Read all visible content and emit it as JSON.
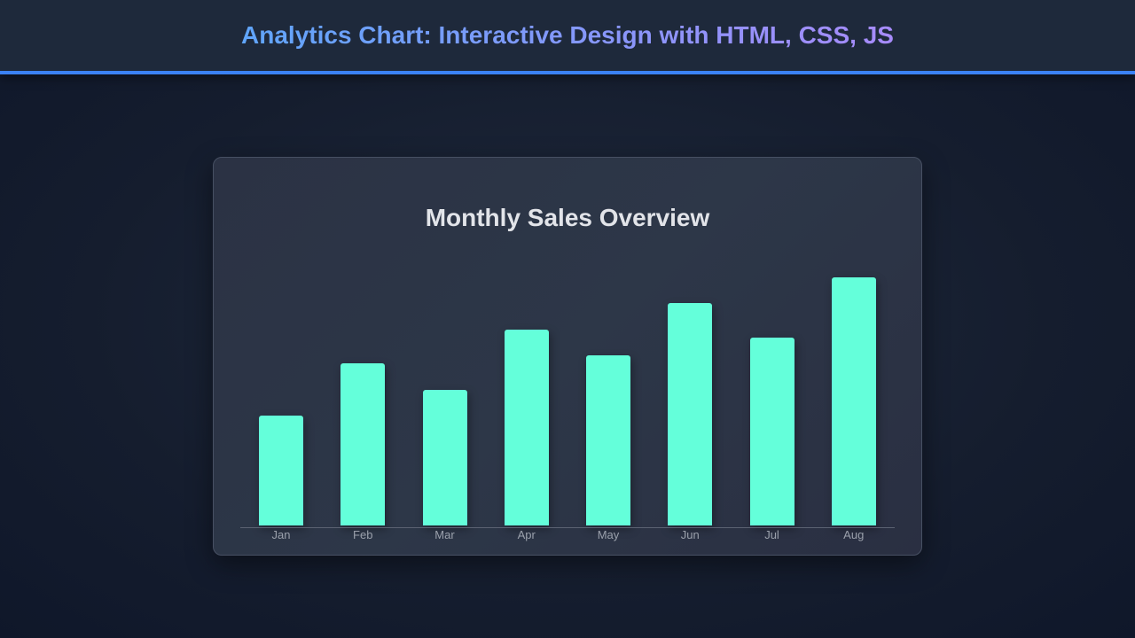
{
  "header": {
    "title": "Analytics Chart: Interactive Design with HTML, CSS, JS"
  },
  "card": {
    "title": "Monthly Sales Overview"
  },
  "colors": {
    "bar": "#64ffda",
    "accent": "#3b82f6",
    "title_gradient_start": "#60a5fa",
    "title_gradient_end": "#a78bfa"
  },
  "chart_data": {
    "type": "bar",
    "title": "Monthly Sales Overview",
    "categories": [
      "Jan",
      "Feb",
      "Mar",
      "Apr",
      "May",
      "Jun",
      "Jul",
      "Aug"
    ],
    "values": [
      42,
      62,
      52,
      75,
      65,
      85,
      72,
      95
    ],
    "xlabel": "",
    "ylabel": "",
    "ylim": [
      0,
      100
    ],
    "grid": false,
    "legend": null
  }
}
